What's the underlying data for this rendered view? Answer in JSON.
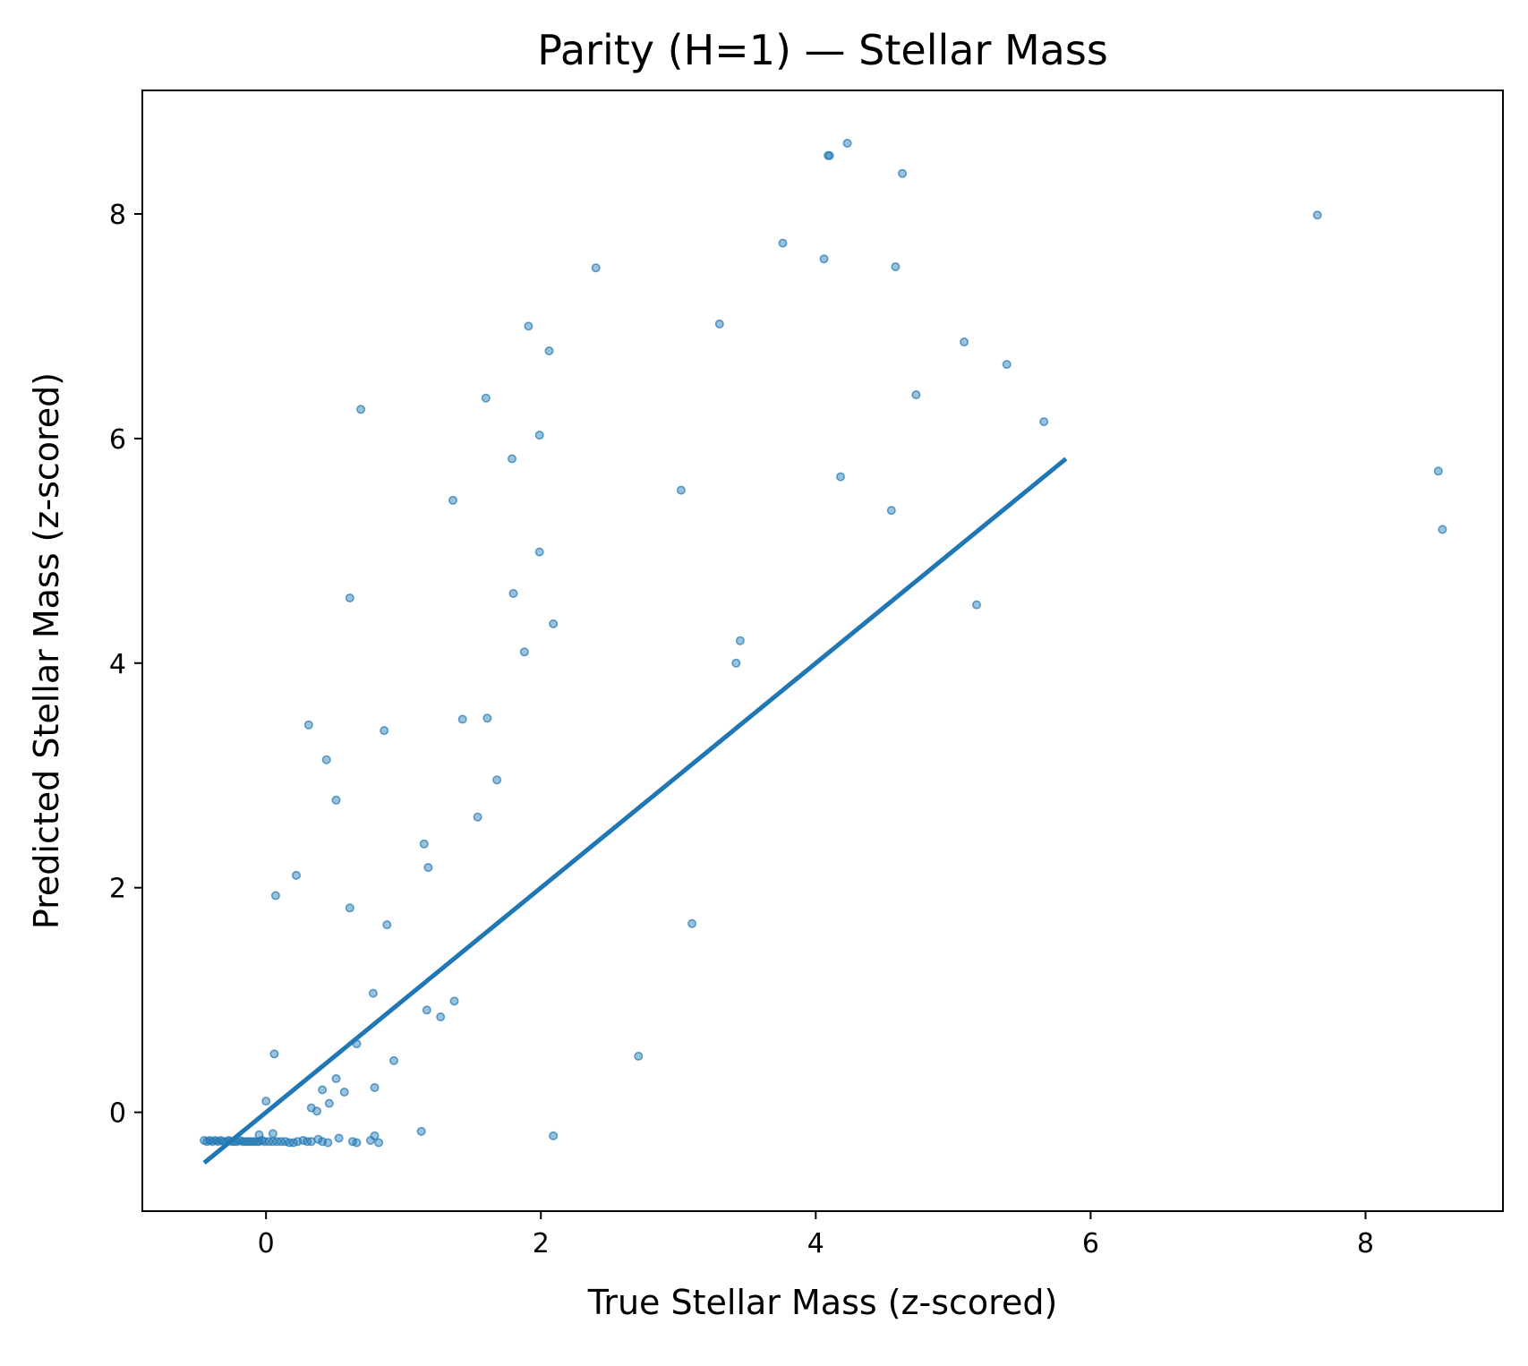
{
  "chart_data": {
    "type": "scatter",
    "title": "Parity (H=1) — Stellar Mass",
    "xlabel": "True Stellar Mass (z-scored)",
    "ylabel": "Predicted Stellar Mass (z-scored)",
    "xlim": [
      -0.9,
      9.0
    ],
    "ylim": [
      -0.88,
      9.1
    ],
    "xticks": [
      0,
      2,
      4,
      6,
      8
    ],
    "yticks": [
      0,
      2,
      4,
      6,
      8
    ],
    "grid": false,
    "colors": {
      "series": "#1f77b4",
      "axes": "#000000"
    },
    "series": [
      {
        "type": "scatter",
        "points": [
          [
            -0.45,
            -0.25
          ],
          [
            -0.43,
            -0.26
          ],
          [
            -0.41,
            -0.25
          ],
          [
            -0.39,
            -0.26
          ],
          [
            -0.37,
            -0.25
          ],
          [
            -0.35,
            -0.26
          ],
          [
            -0.33,
            -0.25
          ],
          [
            -0.31,
            -0.26
          ],
          [
            -0.29,
            -0.26
          ],
          [
            -0.27,
            -0.25
          ],
          [
            -0.25,
            -0.26
          ],
          [
            -0.23,
            -0.26
          ],
          [
            -0.21,
            -0.26
          ],
          [
            -0.19,
            -0.25
          ],
          [
            -0.17,
            -0.26
          ],
          [
            -0.15,
            -0.26
          ],
          [
            -0.13,
            -0.26
          ],
          [
            -0.11,
            -0.26
          ],
          [
            -0.09,
            -0.26
          ],
          [
            -0.07,
            -0.26
          ],
          [
            -0.05,
            -0.26
          ],
          [
            -0.03,
            -0.25
          ],
          [
            -0.01,
            -0.26
          ],
          [
            0.02,
            -0.26
          ],
          [
            0.05,
            -0.26
          ],
          [
            0.08,
            -0.26
          ],
          [
            0.11,
            -0.26
          ],
          [
            0.14,
            -0.26
          ],
          [
            0.17,
            -0.27
          ],
          [
            0.2,
            -0.27
          ],
          [
            0.23,
            -0.26
          ],
          [
            0.27,
            -0.25
          ],
          [
            0.3,
            -0.26
          ],
          [
            0.33,
            -0.26
          ],
          [
            0.38,
            -0.24
          ],
          [
            0.41,
            -0.26
          ],
          [
            0.45,
            -0.27
          ],
          [
            0.53,
            -0.23
          ],
          [
            0.63,
            -0.26
          ],
          [
            0.66,
            -0.27
          ],
          [
            0.76,
            -0.25
          ],
          [
            0.79,
            -0.21
          ],
          [
            0.82,
            -0.27
          ],
          [
            -0.05,
            -0.2
          ],
          [
            0.05,
            -0.19
          ],
          [
            1.13,
            -0.17
          ],
          [
            2.09,
            -0.21
          ],
          [
            0.0,
            0.1
          ],
          [
            0.33,
            0.04
          ],
          [
            0.37,
            0.01
          ],
          [
            0.41,
            0.2
          ],
          [
            0.46,
            0.08
          ],
          [
            0.51,
            0.3
          ],
          [
            0.57,
            0.18
          ],
          [
            0.66,
            0.61
          ],
          [
            0.79,
            0.22
          ],
          [
            0.93,
            0.46
          ],
          [
            0.06,
            0.52
          ],
          [
            0.78,
            1.06
          ],
          [
            1.17,
            0.91
          ],
          [
            1.27,
            0.85
          ],
          [
            1.37,
            0.99
          ],
          [
            2.71,
            0.5
          ],
          [
            0.07,
            1.93
          ],
          [
            0.22,
            2.11
          ],
          [
            0.61,
            1.82
          ],
          [
            0.88,
            1.67
          ],
          [
            1.15,
            2.39
          ],
          [
            1.18,
            2.18
          ],
          [
            3.1,
            1.68
          ],
          [
            0.31,
            3.45
          ],
          [
            0.44,
            3.14
          ],
          [
            0.51,
            2.78
          ],
          [
            0.86,
            3.4
          ],
          [
            1.43,
            3.5
          ],
          [
            1.61,
            3.51
          ],
          [
            1.68,
            2.96
          ],
          [
            1.54,
            2.63
          ],
          [
            0.61,
            4.58
          ],
          [
            1.36,
            5.45
          ],
          [
            1.8,
            4.62
          ],
          [
            1.88,
            4.1
          ],
          [
            1.99,
            4.99
          ],
          [
            2.09,
            4.35
          ],
          [
            1.79,
            5.82
          ],
          [
            1.99,
            6.03
          ],
          [
            3.42,
            4.0
          ],
          [
            3.45,
            4.2
          ],
          [
            0.69,
            6.26
          ],
          [
            1.6,
            6.36
          ],
          [
            1.91,
            7.0
          ],
          [
            2.06,
            6.78
          ],
          [
            2.4,
            7.52
          ],
          [
            3.02,
            5.54
          ],
          [
            3.3,
            7.02
          ],
          [
            3.76,
            7.74
          ],
          [
            4.06,
            7.6
          ],
          [
            4.09,
            8.52
          ],
          [
            4.1,
            8.52
          ],
          [
            4.23,
            8.63
          ],
          [
            4.18,
            5.66
          ],
          [
            4.55,
            5.36
          ],
          [
            4.58,
            7.53
          ],
          [
            4.63,
            8.36
          ],
          [
            4.73,
            6.39
          ],
          [
            5.08,
            6.86
          ],
          [
            5.17,
            4.52
          ],
          [
            5.39,
            6.66
          ],
          [
            5.66,
            6.15
          ],
          [
            7.65,
            7.99
          ],
          [
            8.53,
            5.71
          ],
          [
            8.56,
            5.19
          ]
        ]
      },
      {
        "type": "line",
        "points": [
          [
            -0.45,
            -0.45
          ],
          [
            5.82,
            5.82
          ]
        ]
      }
    ]
  }
}
